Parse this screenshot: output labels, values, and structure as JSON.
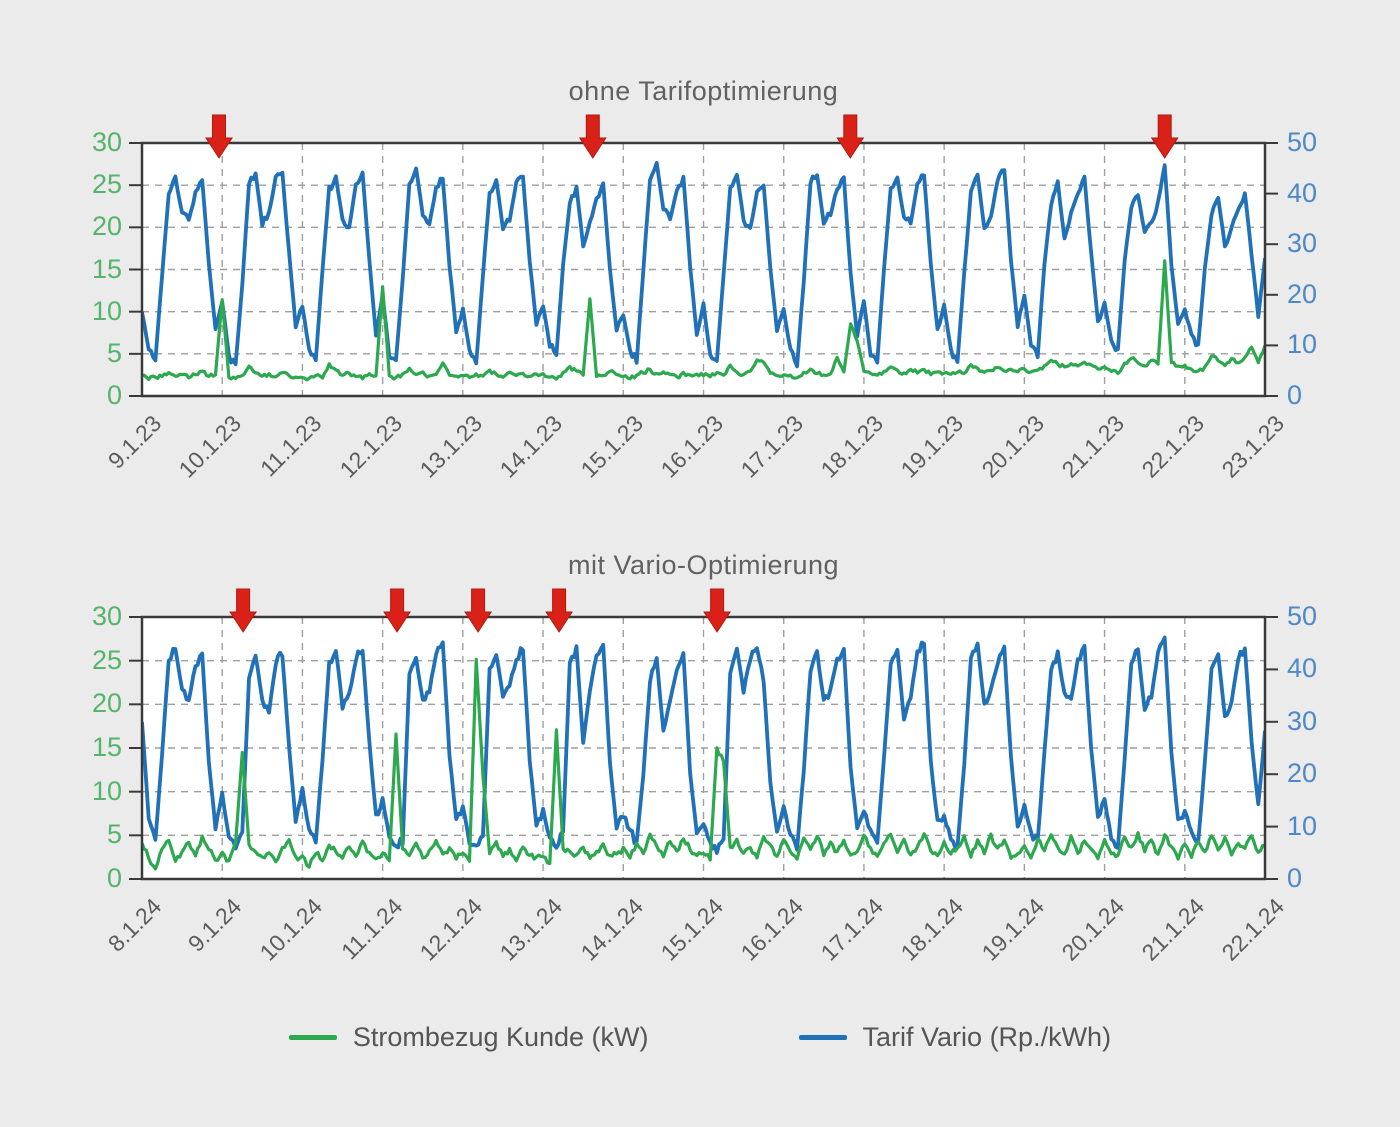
{
  "page": {
    "background_color": "#ebebeb"
  },
  "colors": {
    "load_green": "#2ca84e",
    "tariff_blue": "#2071b8",
    "left_tick_green": "#55b46a",
    "right_tick_blue": "#4e88c6",
    "arrow_red": "#da2118",
    "arrow_edge_red": "#b01a12",
    "title_gray": "#616161",
    "axis_frame": "#3a3a3a",
    "grid_gray": "#9f9f9f",
    "plot_background": "#ffffff"
  },
  "legend": {
    "items": [
      {
        "label": "Strombezug Kunde (kW)",
        "color": "#2ca84e"
      },
      {
        "label": "Tarif Vario (Rp./kWh)",
        "color": "#2071b8"
      }
    ]
  },
  "chart_data": [
    {
      "type": "line",
      "title": "ohne Tarifoptimierung",
      "x_tick_labels": [
        "9.1.23",
        "10.1.23",
        "11.1.23",
        "12.1.23",
        "13.1.23",
        "14.1.23",
        "15.1.23",
        "16.1.23",
        "17.1.23",
        "18.1.23",
        "19.1.23",
        "20.1.23",
        "21.1.23",
        "22.1.23",
        "23.1.23"
      ],
      "x_range_days": [
        0,
        14
      ],
      "left_axis": {
        "series": "Strombezug Kunde (kW)",
        "unit": "kW",
        "ticks": [
          0,
          5,
          10,
          15,
          20,
          25,
          30
        ],
        "range": [
          0,
          30
        ],
        "color": "#2ca84e"
      },
      "right_axis": {
        "series": "Tarif Vario (Rp./kWh)",
        "unit": "Rp./kWh",
        "ticks": [
          0,
          10,
          20,
          30,
          40,
          50
        ],
        "range": [
          0,
          50
        ],
        "color": "#2071b8"
      },
      "grid": {
        "horizontal": "dashed",
        "vertical": "dashed"
      },
      "sample_hours": [
        0,
        2,
        4,
        6,
        8,
        10,
        12,
        14,
        16,
        18,
        20,
        22
      ],
      "annotation_arrows": {
        "color": "#da2118",
        "x_days": [
          0.96,
          5.62,
          8.83,
          12.75
        ]
      },
      "series": [
        {
          "name": "Strombezug Kunde (kW)",
          "axis": "left",
          "color": "#2ca84e",
          "noise": 0.3,
          "days_values": [
            [
              2.5,
              2,
              2.2,
              2.3,
              2.8,
              2.4,
              2.6,
              2.2,
              2.5,
              3,
              2.4,
              2.6
            ],
            [
              11.5,
              2.2,
              2,
              2.4,
              3.5,
              2.8,
              2.3,
              2.6,
              2.2,
              2.8,
              2.4,
              2.2
            ],
            [
              2.3,
              2,
              2.5,
              2.2,
              3.8,
              3,
              2.4,
              2.7,
              2.3,
              2.1,
              2.6,
              2.4
            ],
            [
              13,
              2.4,
              2.1,
              2.6,
              3.2,
              2.5,
              2.8,
              2.3,
              2.6,
              4,
              2.5,
              2.3
            ],
            [
              2.4,
              2.2,
              2.6,
              2.3,
              3,
              2.6,
              2.2,
              2.8,
              2.4,
              2.6,
              2.3,
              2.5
            ],
            [
              2.6,
              2.3,
              2.1,
              2.7,
              3.4,
              2.9,
              2.5,
              11.5,
              2.4,
              2.5,
              2.9,
              2.6
            ],
            [
              2.4,
              2.1,
              2.5,
              2.8,
              3.1,
              2.6,
              2.9,
              2.5,
              2.2,
              2.7,
              2.4,
              2.6
            ],
            [
              2.5,
              2.3,
              2.7,
              2.4,
              3.6,
              2.8,
              2.5,
              2.9,
              4.2,
              4,
              2.6,
              2.4
            ],
            [
              2.6,
              2.4,
              2.2,
              2.8,
              3.2,
              2.7,
              2.4,
              2.6,
              4.5,
              2.8,
              8.5,
              6.5
            ],
            [
              3,
              2.6,
              2.4,
              2.9,
              3.5,
              3,
              2.7,
              3.2,
              2.8,
              3.1,
              2.6,
              2.9
            ],
            [
              2.8,
              2.5,
              2.9,
              2.6,
              3.8,
              3.2,
              2.8,
              3,
              3.4,
              2.9,
              3.2,
              2.8
            ],
            [
              3.2,
              2.8,
              3,
              3.5,
              4.2,
              3.8,
              3.4,
              3.9,
              3.5,
              4.1,
              3.6,
              3.3
            ],
            [
              3.4,
              3,
              2.7,
              3.8,
              4.5,
              4,
              3.6,
              4.2,
              3.8,
              16,
              4,
              3.5
            ],
            [
              3.6,
              3.2,
              2.9,
              3.4,
              4.8,
              4.2,
              3.7,
              4.4,
              3.9,
              4.6,
              5.8,
              4
            ]
          ],
          "end_value": 6
        },
        {
          "name": "Tarif Vario (Rp./kWh)",
          "axis": "right",
          "color": "#2071b8",
          "noise": 1.3,
          "days_values": [
            [
              17,
              9,
              7,
              24,
              40,
              43,
              36,
              35,
              40,
              43,
              26,
              13
            ],
            [
              19,
              8,
              6,
              22,
              42,
              44,
              34,
              36,
              43,
              44,
              28,
              14
            ],
            [
              18,
              9,
              7,
              25,
              41,
              43,
              35,
              33,
              42,
              44,
              27,
              12
            ],
            [
              20,
              8,
              7,
              23,
              42,
              45,
              36,
              34,
              41,
              43,
              26,
              13
            ],
            [
              17,
              9,
              6,
              24,
              40,
              43,
              33,
              35,
              42,
              43,
              27,
              14
            ],
            [
              18,
              10,
              8,
              26,
              38,
              41,
              30,
              34,
              39,
              42,
              25,
              13
            ],
            [
              16,
              9,
              7,
              25,
              43,
              46,
              37,
              35,
              41,
              43,
              26,
              12
            ],
            [
              18,
              8,
              7,
              24,
              41,
              44,
              35,
              33,
              40,
              42,
              25,
              13
            ],
            [
              17,
              9,
              6,
              23,
              42,
              44,
              34,
              36,
              41,
              43,
              24,
              12
            ],
            [
              19,
              8,
              7,
              25,
              41,
              43,
              35,
              34,
              42,
              44,
              26,
              13
            ],
            [
              18,
              9,
              7,
              24,
              40,
              44,
              33,
              35,
              43,
              45,
              27,
              14
            ],
            [
              20,
              10,
              8,
              26,
              38,
              42,
              31,
              36,
              40,
              43,
              28,
              15
            ],
            [
              18,
              11,
              9,
              27,
              37,
              40,
              32,
              34,
              38,
              46,
              26,
              14
            ],
            [
              17,
              12,
              10,
              25,
              36,
              39,
              30,
              33,
              37,
              40,
              28,
              16
            ]
          ],
          "end_value": 27
        }
      ]
    },
    {
      "type": "line",
      "title": "mit Vario-Optimierung",
      "x_tick_labels": [
        "8.1.24",
        "9.1.24",
        "10.1.24",
        "11.1.24",
        "12.1.24",
        "13.1.24",
        "14.1.24",
        "15.1.24",
        "16.1.24",
        "17.1.24",
        "18.1.24",
        "19.1.24",
        "20.1.24",
        "21.1.24",
        "22.1.24"
      ],
      "x_range_days": [
        0,
        14
      ],
      "left_axis": {
        "series": "Strombezug Kunde (kW)",
        "unit": "kW",
        "ticks": [
          0,
          5,
          10,
          15,
          20,
          25,
          30
        ],
        "range": [
          0,
          30
        ],
        "color": "#2ca84e"
      },
      "right_axis": {
        "series": "Tarif Vario (Rp./kWh)",
        "unit": "Rp./kWh",
        "ticks": [
          0,
          10,
          20,
          30,
          40,
          50
        ],
        "range": [
          0,
          50
        ],
        "color": "#2071b8"
      },
      "grid": {
        "horizontal": "dashed",
        "vertical": "dashed"
      },
      "sample_hours": [
        0,
        2,
        4,
        6,
        8,
        10,
        12,
        14,
        16,
        18,
        20,
        22
      ],
      "annotation_arrows": {
        "color": "#da2118",
        "x_days": [
          1.26,
          3.18,
          4.19,
          5.2,
          7.17
        ]
      },
      "series": [
        {
          "name": "Strombezug Kunde (kW)",
          "axis": "left",
          "color": "#2ca84e",
          "noise": 0.45,
          "days_values": [
            [
              4,
              2.5,
              1,
              3.5,
              4.5,
              2,
              3,
              4.2,
              2.5,
              4.8,
              3.5,
              2
            ],
            [
              3,
              2,
              4,
              14.5,
              4,
              3,
              2.5,
              3,
              2,
              3.5,
              4.5,
              2.5
            ],
            [
              2.5,
              1.5,
              3,
              2.2,
              4,
              3.2,
              2.4,
              3.8,
              2.6,
              4.2,
              3,
              2.2
            ],
            [
              3,
              2.2,
              16.5,
              3.5,
              2.8,
              4,
              2.5,
              3.2,
              4.5,
              2.8,
              3.5,
              2.4
            ],
            [
              2.8,
              2,
              25.3,
              12,
              3,
              4.2,
              2.6,
              3.4,
              2.2,
              3.8,
              2.8,
              2.5
            ],
            [
              2.6,
              1.8,
              17,
              3.4,
              3.2,
              2.8,
              3.5,
              2.4,
              3,
              4,
              2.6,
              2.8
            ],
            [
              3.5,
              2.5,
              4,
              3,
              5,
              3.8,
              2.6,
              4.4,
              3.2,
              4.6,
              3.4,
              2.8
            ],
            [
              3,
              2.2,
              15,
              13.5,
              3.5,
              4.5,
              2.8,
              3.6,
              2.4,
              4.8,
              3.8,
              2.6
            ],
            [
              4.5,
              3,
              2.2,
              4.8,
              3.4,
              5,
              2.8,
              4.2,
              3,
              4.4,
              2.6,
              3.2
            ],
            [
              5,
              3.5,
              2.5,
              4.2,
              5,
              3,
              4.5,
              2.8,
              3.8,
              5.2,
              3.2,
              2.6
            ],
            [
              4.2,
              2.8,
              3.6,
              5,
              2.6,
              4.4,
              3,
              5,
              3.4,
              4.6,
              2.4,
              3
            ],
            [
              3.8,
              2.4,
              4.6,
              3.2,
              5,
              3.6,
              2.8,
              4.8,
              3,
              4.2,
              3.4,
              2.2
            ],
            [
              4.4,
              3,
              2.6,
              4.8,
              3.6,
              5.2,
              3.2,
              4.4,
              2.8,
              5,
              3.8,
              2.4
            ],
            [
              4,
              2.6,
              4.4,
              3,
              5,
              3.4,
              4.8,
              2.6,
              4.2,
              3.6,
              5,
              3
            ]
          ],
          "end_value": 4
        },
        {
          "name": "Tarif Vario (Rp./kWh)",
          "axis": "right",
          "color": "#2071b8",
          "noise": 1.5,
          "days_values": [
            [
              30,
              12,
              7,
              24,
              42,
              44,
              36,
              34,
              41,
              43,
              22,
              10
            ],
            [
              16,
              8,
              6,
              9,
              38,
              43,
              34,
              32,
              41,
              43,
              25,
              11
            ],
            [
              17,
              9,
              7,
              23,
              41,
              44,
              33,
              35,
              42,
              44,
              26,
              12
            ],
            [
              15,
              8,
              6,
              7,
              39,
              42,
              34,
              36,
              43,
              45,
              24,
              11
            ],
            [
              14,
              7,
              6,
              8,
              40,
              43,
              35,
              37,
              42,
              44,
              23,
              10
            ],
            [
              13,
              8,
              6,
              9,
              41,
              44,
              26,
              36,
              43,
              45,
              22,
              10
            ],
            [
              12,
              9,
              7,
              20,
              38,
              42,
              28,
              34,
              40,
              43,
              20,
              9
            ],
            [
              11,
              7,
              5,
              8,
              39,
              44,
              36,
              42,
              44,
              38,
              18,
              9
            ],
            [
              14,
              8,
              6,
              21,
              40,
              43,
              34,
              36,
              42,
              44,
              21,
              10
            ],
            [
              13,
              9,
              7,
              23,
              41,
              44,
              30,
              35,
              43,
              45,
              22,
              11
            ],
            [
              12,
              8,
              6,
              22,
              42,
              45,
              33,
              36,
              41,
              44,
              23,
              10
            ],
            [
              14,
              9,
              7,
              24,
              40,
              43,
              35,
              34,
              42,
              44,
              25,
              12
            ],
            [
              15,
              8,
              6,
              23,
              41,
              44,
              32,
              35,
              43,
              46,
              24,
              11
            ],
            [
              13,
              9,
              7,
              22,
              40,
              43,
              31,
              34,
              42,
              44,
              26,
              14
            ]
          ],
          "end_value": 28
        }
      ]
    }
  ]
}
